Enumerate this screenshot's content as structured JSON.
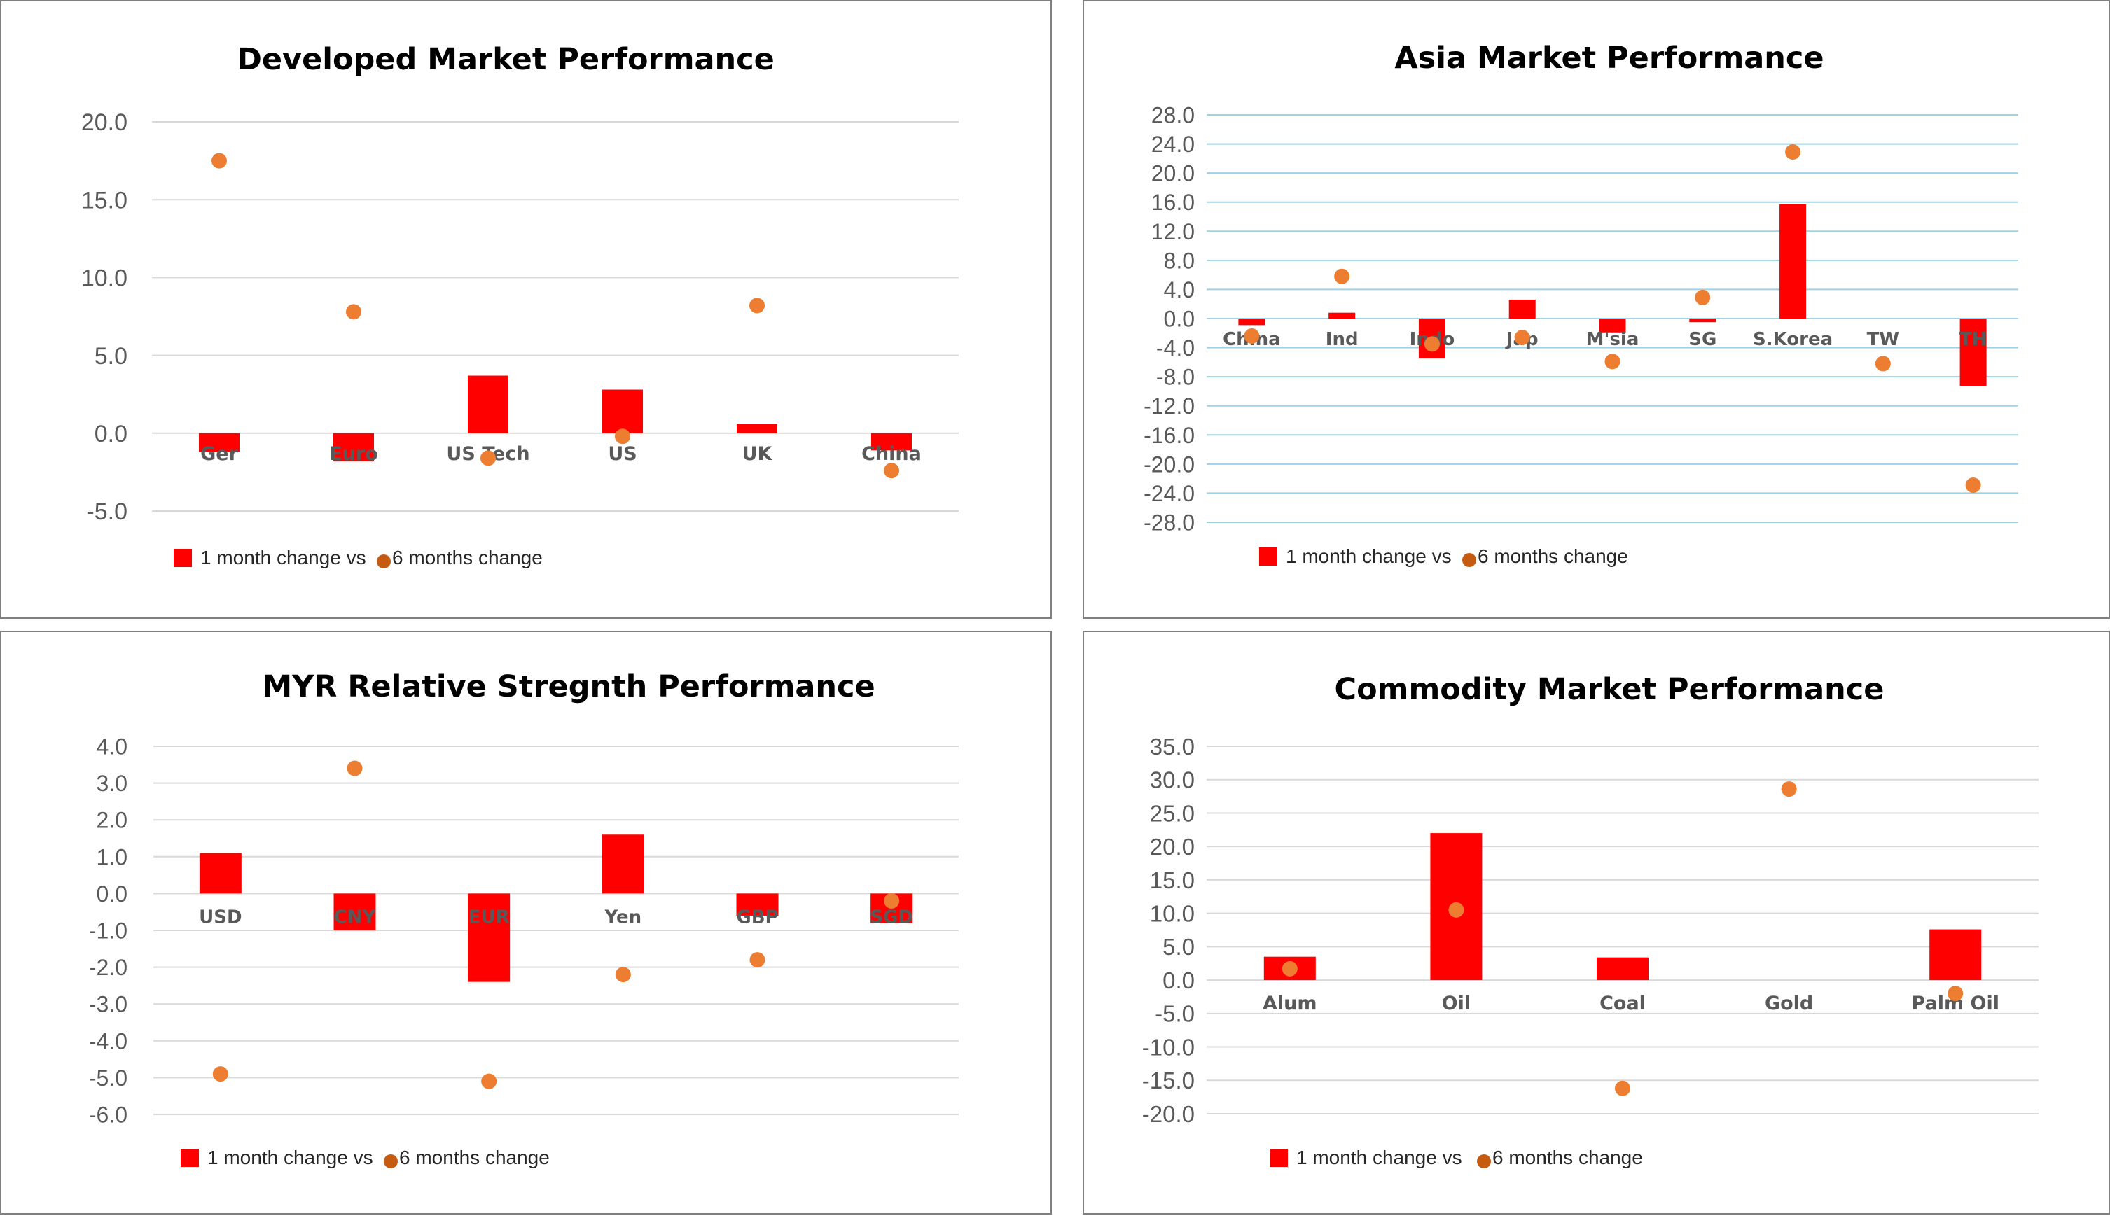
{
  "chart_data": [
    {
      "id": "dev",
      "type": "bar",
      "title": "Developed Market Performance",
      "categories": [
        "Ger",
        "Euro",
        "US Tech",
        "US",
        "UK",
        "China"
      ],
      "series": [
        {
          "name": "1 month change vs",
          "kind": "bar",
          "color": "#ff0000",
          "values": [
            -1.2,
            -1.8,
            3.7,
            2.8,
            0.6,
            -1.1
          ]
        },
        {
          "name": "6 months change",
          "kind": "scatter",
          "color": "#ed7d31",
          "values": [
            17.5,
            7.8,
            -1.6,
            -0.2,
            8.2,
            -2.4
          ]
        }
      ],
      "yticks": [
        "20.0",
        "15.0",
        "10.0",
        "5.0",
        "0.0",
        "-5.0"
      ],
      "ylim": [
        -5,
        20
      ],
      "grid": true,
      "gridColor": "#d9d9d9",
      "legend": "bottom-left"
    },
    {
      "id": "asia",
      "type": "bar",
      "title": "Asia Market Performance",
      "categories": [
        "China",
        "Ind",
        "Indo",
        "Jap",
        "M'sia",
        "SG",
        "S.Korea",
        "TW",
        "TH"
      ],
      "series": [
        {
          "name": "1 month change vs",
          "kind": "bar",
          "color": "#ff0000",
          "values": [
            -0.9,
            0.8,
            -5.5,
            2.6,
            -1.9,
            -0.5,
            15.7,
            0.0,
            -9.3
          ]
        },
        {
          "name": "6 months change",
          "kind": "scatter",
          "color": "#ed7d31",
          "values": [
            -2.4,
            5.8,
            -3.5,
            -2.6,
            -5.9,
            2.9,
            22.9,
            -6.2,
            -22.9
          ]
        }
      ],
      "yticks": [
        "28.0",
        "24.0",
        "20.0",
        "16.0",
        "12.0",
        "8.0",
        "4.0",
        "0.0",
        "-4.0",
        "-8.0",
        "-12.0",
        "-16.0",
        "-20.0",
        "-24.0",
        "-28.0"
      ],
      "ylim": [
        -28,
        28
      ],
      "grid": true,
      "gridColor": "#9ed3e6",
      "legend": "bottom-left"
    },
    {
      "id": "myr",
      "type": "bar",
      "title": "MYR Relative Stregnth Performance",
      "categories": [
        "USD",
        "CNY",
        "EUR",
        "Yen",
        "GBP",
        "SGD"
      ],
      "series": [
        {
          "name": "1 month change vs",
          "kind": "bar",
          "color": "#ff0000",
          "values": [
            1.1,
            -1.0,
            -2.4,
            1.6,
            -0.6,
            -0.8
          ]
        },
        {
          "name": "6 months change",
          "kind": "scatter",
          "color": "#ed7d31",
          "values": [
            -4.9,
            3.4,
            -5.1,
            -2.2,
            -1.8,
            -0.2
          ]
        }
      ],
      "yticks": [
        "4.0",
        "3.0",
        "2.0",
        "1.0",
        "0.0",
        "-1.0",
        "-2.0",
        "-3.0",
        "-4.0",
        "-5.0",
        "-6.0"
      ],
      "ylim": [
        -6,
        4
      ],
      "grid": true,
      "gridColor": "#d9d9d9",
      "legend": "bottom-left"
    },
    {
      "id": "comm",
      "type": "bar",
      "title": "Commodity Market Performance",
      "categories": [
        "Alum",
        "Oil",
        "Coal",
        "Gold",
        "Palm Oil"
      ],
      "series": [
        {
          "name": "1 month change vs",
          "kind": "bar",
          "color": "#ff0000",
          "values": [
            3.5,
            22.0,
            3.4,
            0.0,
            7.6
          ]
        },
        {
          "name": "6 months change",
          "kind": "scatter",
          "color": "#ed7d31",
          "values": [
            1.7,
            10.5,
            -16.2,
            28.6,
            -2.0
          ]
        }
      ],
      "yticks": [
        "35.0",
        "30.0",
        "25.0",
        "20.0",
        "15.0",
        "10.0",
        "5.0",
        "0.0",
        "-5.0",
        "-10.0",
        "-15.0",
        "-20.0"
      ],
      "ylim": [
        -20,
        35
      ],
      "grid": true,
      "gridColor": "#d9d9d9",
      "legend": "bottom-left"
    }
  ]
}
